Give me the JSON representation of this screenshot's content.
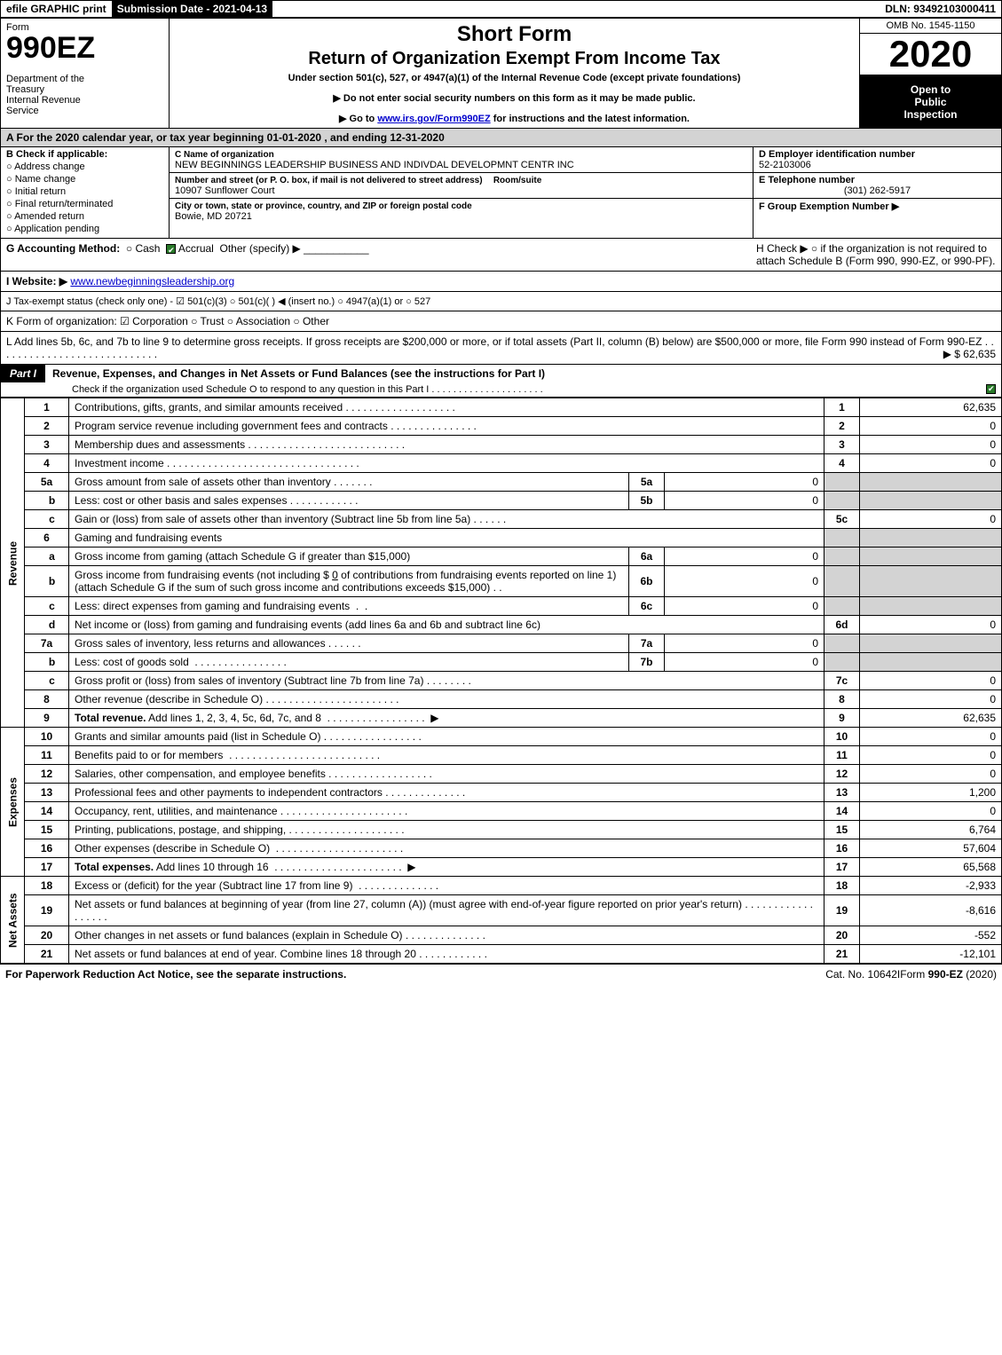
{
  "top": {
    "efile": "efile GRAPHIC print",
    "submission_label": "Submission Date - 2021-04-13",
    "dln": "DLN: 93492103000411"
  },
  "header": {
    "form_word": "Form",
    "form_number": "990EZ",
    "dept": "Department of the Treasury\nInternal Revenue Service",
    "short_form": "Short Form",
    "return_title": "Return of Organization Exempt From Income Tax",
    "under_section": "Under section 501(c), 527, or 4947(a)(1) of the Internal Revenue Code (except private foundations)",
    "notice1": "▶ Do not enter social security numbers on this form as it may be made public.",
    "notice2_pre": "▶ Go to ",
    "notice2_link": "www.irs.gov/Form990EZ",
    "notice2_post": " for instructions and the latest information.",
    "omb": "OMB No. 1545-1150",
    "year": "2020",
    "open_to": "Open to",
    "public": "Public",
    "inspection": "Inspection"
  },
  "taxyear": "A  For the 2020 calendar year, or tax year beginning 01-01-2020 , and ending 12-31-2020",
  "section_b": {
    "title": "B  Check if applicable:",
    "items": [
      "Address change",
      "Name change",
      "Initial return",
      "Final return/terminated",
      "Amended return",
      "Application pending"
    ]
  },
  "section_c": {
    "name_label": "C Name of organization",
    "name": "NEW BEGINNINGS LEADERSHIP BUSINESS AND INDIVDAL DEVELOPMNT CENTR INC",
    "addr_label": "Number and street (or P. O. box, if mail is not delivered to street address)",
    "room_label": "Room/suite",
    "addr": "10907 Sunflower Court",
    "city_label": "City or town, state or province, country, and ZIP or foreign postal code",
    "city": "Bowie, MD  20721"
  },
  "section_d": {
    "ein_label": "D Employer identification number",
    "ein": "52-2103006",
    "phone_label": "E Telephone number",
    "phone": "(301) 262-5917",
    "group_label": "F Group Exemption Number  ▶"
  },
  "row_g": {
    "label": "G Accounting Method:",
    "cash": "Cash",
    "accrual": "Accrual",
    "other": "Other (specify) ▶"
  },
  "row_h": {
    "text": "H  Check ▶  ○  if the organization is not required to attach Schedule B (Form 990, 990-EZ, or 990-PF)."
  },
  "row_i": {
    "label": "I Website: ▶",
    "site": "www.newbeginningsleadership.org"
  },
  "row_j": "J Tax-exempt status (check only one) -  ☑ 501(c)(3)  ○ 501(c)( )  ◀ (insert no.)  ○ 4947(a)(1) or  ○ 527",
  "row_k": "K Form of organization:   ☑ Corporation   ○ Trust   ○ Association   ○ Other",
  "row_l": {
    "text": "L Add lines 5b, 6c, and 7b to line 9 to determine gross receipts. If gross receipts are $200,000 or more, or if total assets (Part II, column (B) below) are $500,000 or more, file Form 990 instead of Form 990-EZ",
    "amount": "▶ $ 62,635"
  },
  "part1": {
    "badge": "Part I",
    "title": "Revenue, Expenses, and Changes in Net Assets or Fund Balances (see the instructions for Part I)",
    "check_note": "Check if the organization used Schedule O to respond to any question in this Part I"
  },
  "lines": {
    "l1": {
      "desc": "Contributions, gifts, grants, and similar amounts received",
      "val": "62,635"
    },
    "l2": {
      "desc": "Program service revenue including government fees and contracts",
      "val": "0"
    },
    "l3": {
      "desc": "Membership dues and assessments",
      "val": "0"
    },
    "l4": {
      "desc": "Investment income",
      "val": "0"
    },
    "l5a": {
      "desc": "Gross amount from sale of assets other than inventory",
      "sub": "0"
    },
    "l5b": {
      "desc": "Less: cost or other basis and sales expenses",
      "sub": "0"
    },
    "l5c": {
      "desc": "Gain or (loss) from sale of assets other than inventory (Subtract line 5b from line 5a)",
      "val": "0"
    },
    "l6": {
      "desc": "Gaming and fundraising events"
    },
    "l6a": {
      "desc": "Gross income from gaming (attach Schedule G if greater than $15,000)",
      "sub": "0"
    },
    "l6b": {
      "desc_pre": "Gross income from fundraising events (not including $ ",
      "desc_mid": "0",
      "desc_post": " of contributions from fundraising events reported on line 1) (attach Schedule G if the sum of such gross income and contributions exceeds $15,000)",
      "sub": "0"
    },
    "l6c": {
      "desc": "Less: direct expenses from gaming and fundraising events",
      "sub": "0"
    },
    "l6d": {
      "desc": "Net income or (loss) from gaming and fundraising events (add lines 6a and 6b and subtract line 6c)",
      "val": "0"
    },
    "l7a": {
      "desc": "Gross sales of inventory, less returns and allowances",
      "sub": "0"
    },
    "l7b": {
      "desc": "Less: cost of goods sold",
      "sub": "0"
    },
    "l7c": {
      "desc": "Gross profit or (loss) from sales of inventory (Subtract line 7b from line 7a)",
      "val": "0"
    },
    "l8": {
      "desc": "Other revenue (describe in Schedule O)",
      "val": "0"
    },
    "l9": {
      "desc": "Total revenue. Add lines 1, 2, 3, 4, 5c, 6d, 7c, and 8",
      "val": "62,635"
    },
    "l10": {
      "desc": "Grants and similar amounts paid (list in Schedule O)",
      "val": "0"
    },
    "l11": {
      "desc": "Benefits paid to or for members",
      "val": "0"
    },
    "l12": {
      "desc": "Salaries, other compensation, and employee benefits",
      "val": "0"
    },
    "l13": {
      "desc": "Professional fees and other payments to independent contractors",
      "val": "1,200"
    },
    "l14": {
      "desc": "Occupancy, rent, utilities, and maintenance",
      "val": "0"
    },
    "l15": {
      "desc": "Printing, publications, postage, and shipping,",
      "val": "6,764"
    },
    "l16": {
      "desc": "Other expenses (describe in Schedule O)",
      "val": "57,604"
    },
    "l17": {
      "desc": "Total expenses. Add lines 10 through 16",
      "val": "65,568"
    },
    "l18": {
      "desc": "Excess or (deficit) for the year (Subtract line 17 from line 9)",
      "val": "-2,933"
    },
    "l19": {
      "desc": "Net assets or fund balances at beginning of year (from line 27, column (A)) (must agree with end-of-year figure reported on prior year's return)",
      "val": "-8,616"
    },
    "l20": {
      "desc": "Other changes in net assets or fund balances (explain in Schedule O)",
      "val": "-552"
    },
    "l21": {
      "desc": "Net assets or fund balances at end of year. Combine lines 18 through 20",
      "val": "-12,101"
    }
  },
  "side_labels": {
    "revenue": "Revenue",
    "expenses": "Expenses",
    "netassets": "Net Assets"
  },
  "footer": {
    "left": "For Paperwork Reduction Act Notice, see the separate instructions.",
    "center": "Cat. No. 10642I",
    "right": "Form 990-EZ (2020)"
  },
  "colors": {
    "black": "#000000",
    "shade": "#d3d3d3",
    "link": "#0000cc",
    "check": "#2a7a2a"
  }
}
